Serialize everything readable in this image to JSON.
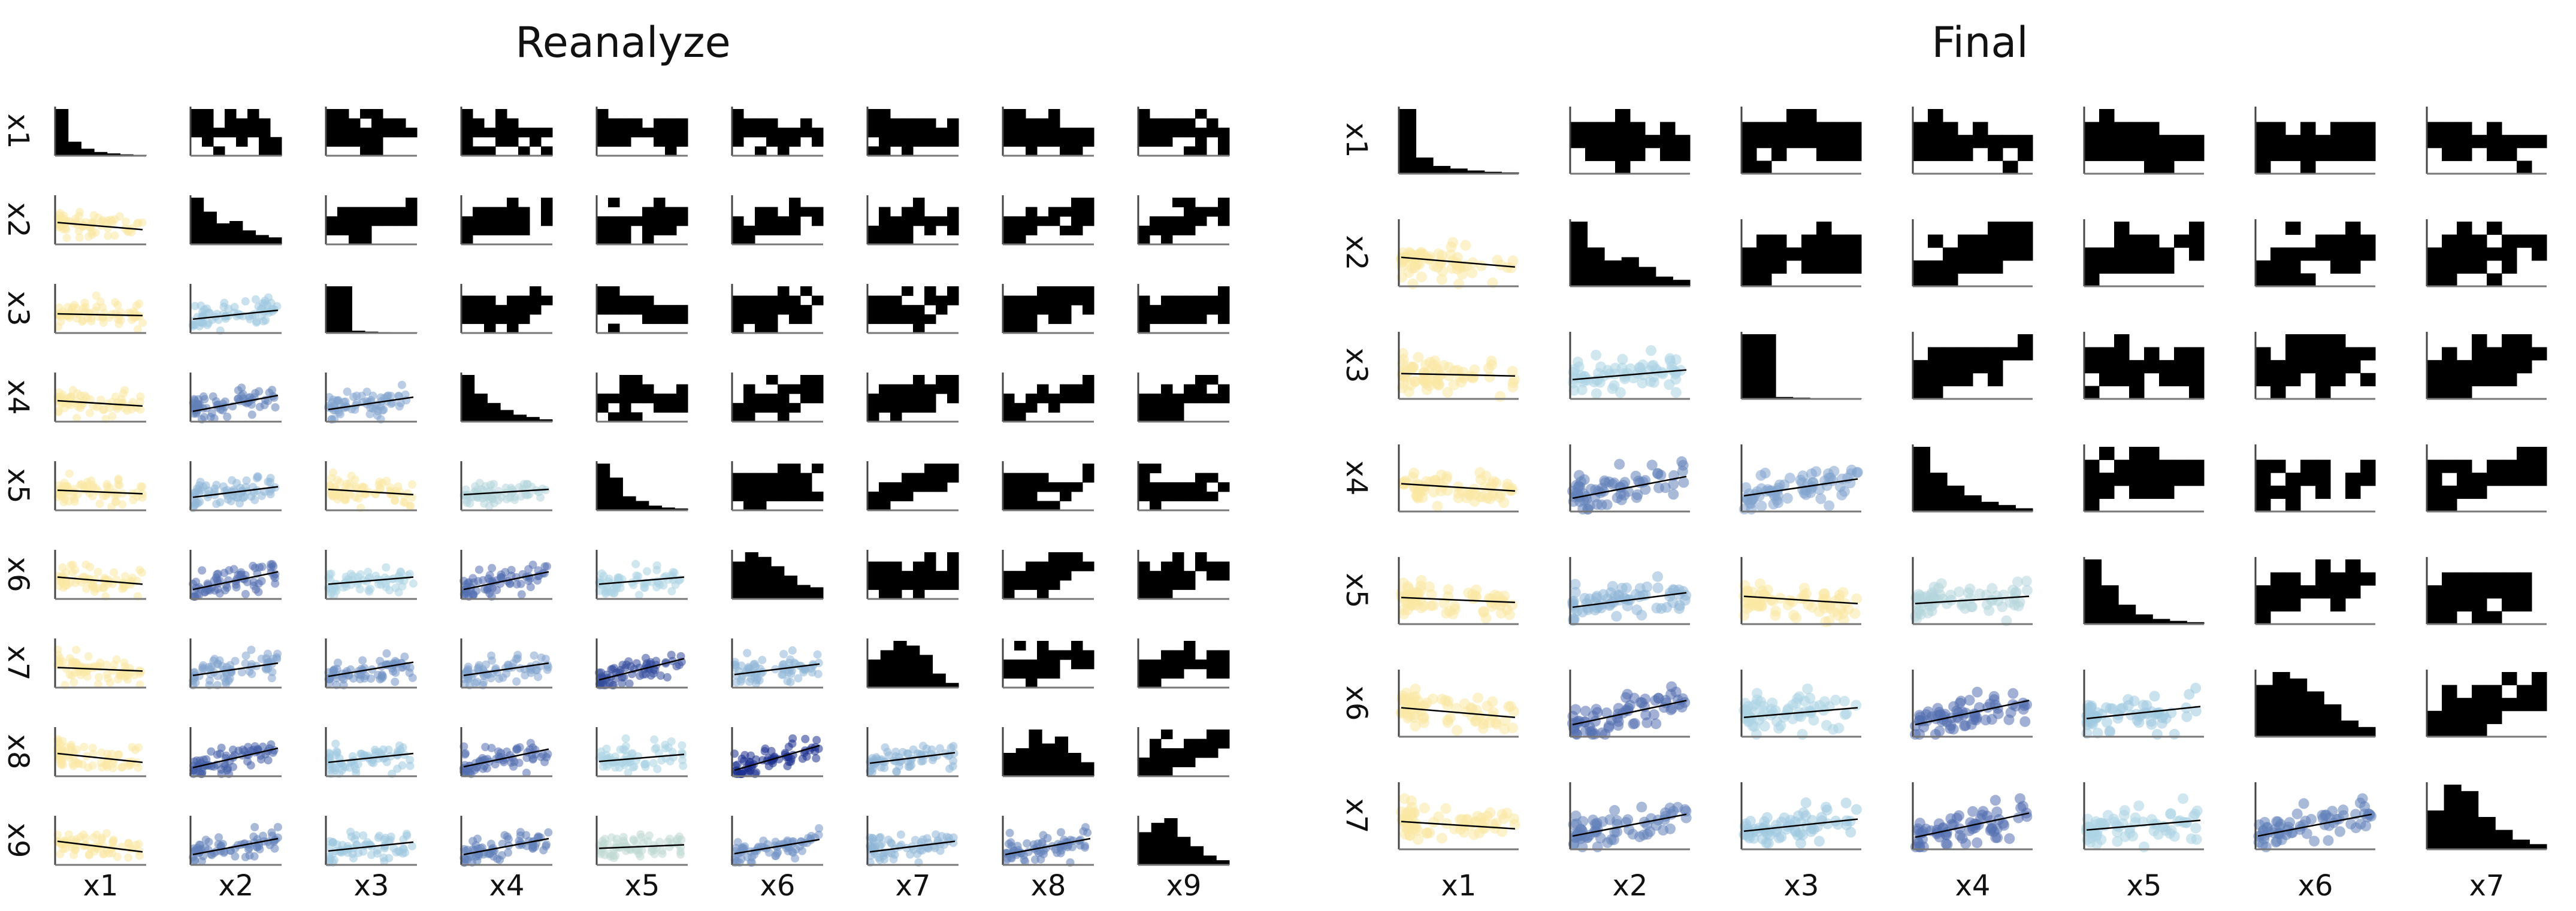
{
  "chart_data": [
    {
      "type": "scatter",
      "title": "Reanalyze",
      "variables": [
        "x1",
        "x2",
        "x3",
        "x4",
        "x5",
        "x6",
        "x7",
        "x8",
        "x9"
      ],
      "labels": {
        "rows": [
          "x1",
          "x2",
          "x3",
          "x4",
          "x5",
          "x6",
          "x7",
          "x8",
          "x9"
        ],
        "cols": [
          "x1",
          "x2",
          "x3",
          "x4",
          "x5",
          "x6",
          "x7",
          "x8",
          "x9"
        ]
      },
      "grid": false,
      "diagonal": "histogram",
      "upper": "2d-histogram",
      "lower": "scatter-with-regression",
      "colormap": {
        "low": "#fde9a0",
        "mid": "#a9d3e6",
        "high": "#1c2f8e"
      },
      "correlations": [
        [
          1.0,
          -0.2,
          -0.05,
          -0.15,
          -0.1,
          -0.2,
          -0.1,
          -0.25,
          -0.3
        ],
        [
          -0.2,
          1.0,
          0.25,
          0.45,
          0.3,
          0.5,
          0.35,
          0.55,
          0.45
        ],
        [
          -0.05,
          0.25,
          1.0,
          0.35,
          -0.15,
          0.2,
          0.4,
          0.25,
          0.25
        ],
        [
          -0.15,
          0.45,
          0.35,
          1.0,
          0.15,
          0.5,
          0.35,
          0.5,
          0.45
        ],
        [
          -0.1,
          0.3,
          -0.15,
          0.15,
          1.0,
          0.2,
          0.6,
          0.2,
          0.1
        ],
        [
          -0.2,
          0.5,
          0.2,
          0.5,
          0.2,
          1.0,
          0.3,
          0.7,
          0.4
        ],
        [
          -0.1,
          0.35,
          0.4,
          0.35,
          0.6,
          0.3,
          1.0,
          0.3,
          0.3
        ],
        [
          -0.25,
          0.55,
          0.25,
          0.5,
          0.2,
          0.7,
          0.3,
          1.0,
          0.45
        ],
        [
          -0.3,
          0.45,
          0.25,
          0.45,
          0.1,
          0.4,
          0.3,
          0.45,
          1.0
        ]
      ],
      "diagonal_hist": [
        [
          100,
          30,
          15,
          8,
          5,
          3,
          2
        ],
        [
          100,
          70,
          45,
          50,
          30,
          20,
          15
        ],
        [
          100,
          100,
          5,
          3,
          2,
          1,
          1
        ],
        [
          100,
          60,
          40,
          25,
          15,
          10,
          5
        ],
        [
          100,
          70,
          30,
          20,
          10,
          6,
          4
        ],
        [
          80,
          100,
          90,
          70,
          50,
          30,
          25
        ],
        [
          60,
          80,
          100,
          90,
          70,
          30,
          10
        ],
        [
          50,
          60,
          100,
          70,
          85,
          50,
          30
        ],
        [
          70,
          90,
          100,
          60,
          40,
          20,
          10
        ]
      ]
    },
    {
      "type": "scatter",
      "title": "Final",
      "variables": [
        "x1",
        "x2",
        "x3",
        "x4",
        "x5",
        "x6",
        "x7"
      ],
      "labels": {
        "rows": [
          "x1",
          "x2",
          "x3",
          "x4",
          "x5",
          "x6",
          "x7"
        ],
        "cols": [
          "x1",
          "x2",
          "x3",
          "x4",
          "x5",
          "x6",
          "x7"
        ]
      },
      "grid": false,
      "diagonal": "histogram",
      "upper": "2d-histogram",
      "lower": "scatter-with-regression",
      "colormap": {
        "low": "#fde9a0",
        "mid": "#a9d3e6",
        "high": "#1c2f8e"
      },
      "correlations": [
        [
          1.0,
          -0.2,
          -0.05,
          -0.15,
          -0.1,
          -0.2,
          -0.15
        ],
        [
          -0.2,
          1.0,
          0.2,
          0.45,
          0.3,
          0.5,
          0.45
        ],
        [
          -0.05,
          0.2,
          1.0,
          0.35,
          -0.15,
          0.2,
          0.25
        ],
        [
          -0.15,
          0.45,
          0.35,
          1.0,
          0.15,
          0.5,
          0.5
        ],
        [
          -0.1,
          0.3,
          -0.15,
          0.15,
          1.0,
          0.25,
          0.2
        ],
        [
          -0.2,
          0.5,
          0.2,
          0.5,
          0.25,
          1.0,
          0.45
        ],
        [
          -0.15,
          0.45,
          0.25,
          0.5,
          0.2,
          0.45,
          1.0
        ]
      ],
      "diagonal_hist": [
        [
          100,
          25,
          12,
          8,
          5,
          3,
          2
        ],
        [
          100,
          60,
          40,
          45,
          30,
          15,
          10
        ],
        [
          100,
          100,
          3,
          2,
          1,
          1,
          1
        ],
        [
          100,
          60,
          40,
          25,
          15,
          10,
          5
        ],
        [
          100,
          60,
          30,
          15,
          8,
          5,
          3
        ],
        [
          80,
          100,
          90,
          70,
          50,
          25,
          15
        ],
        [
          60,
          100,
          90,
          50,
          30,
          15,
          8
        ]
      ]
    }
  ]
}
